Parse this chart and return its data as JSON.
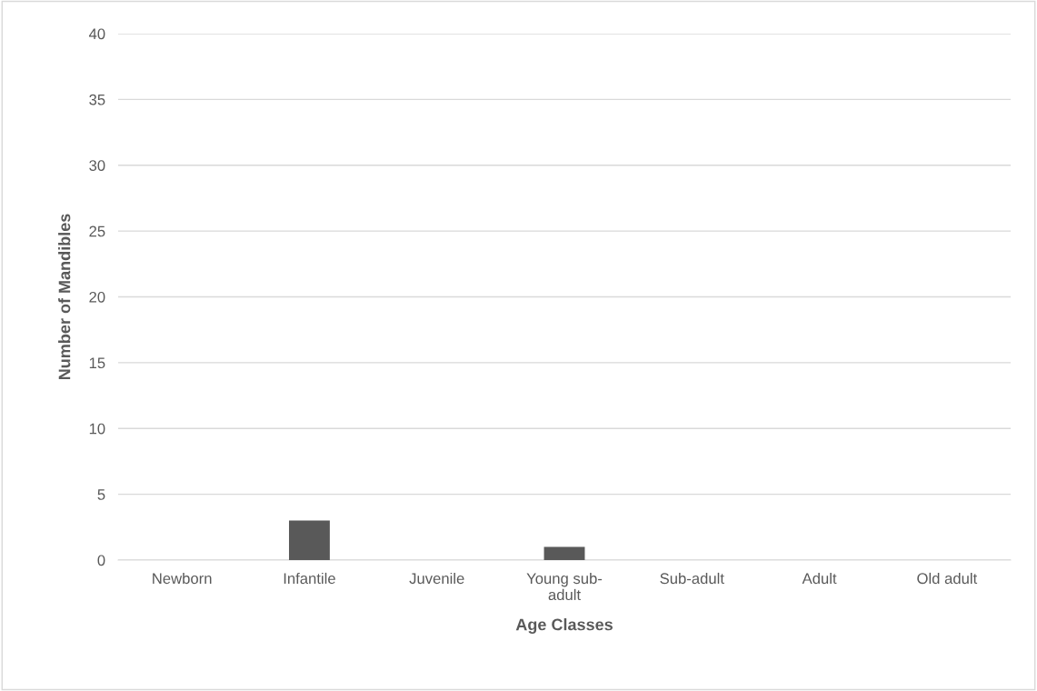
{
  "chart_data": {
    "type": "bar",
    "xlabel": "Age Classes",
    "ylabel": "Number of Mandibles",
    "categories": [
      "Newborn",
      "Infantile",
      "Juvenile",
      "Young sub-\nadult",
      "Sub-adult",
      "Adult",
      "Old adult"
    ],
    "values": [
      0,
      3,
      0,
      1,
      0,
      0,
      0
    ],
    "color": "#595959",
    "ylim": [
      0,
      40
    ],
    "yticks": [
      0,
      5,
      10,
      15,
      20,
      25,
      30,
      35,
      40
    ],
    "grid": "y",
    "legend": false
  }
}
